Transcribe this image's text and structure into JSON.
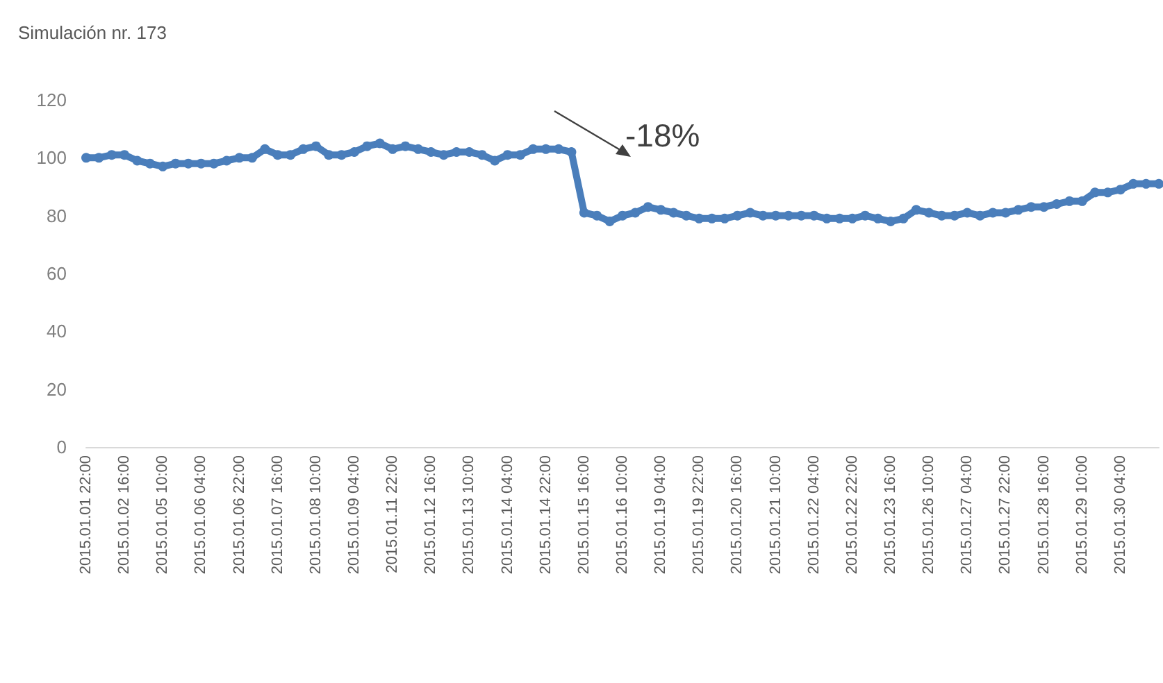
{
  "chart_data": {
    "type": "line",
    "title": "Simulación nr. 173",
    "categories": [
      "2015.01.01 22:00",
      null,
      null,
      "2015.01.02 16:00",
      null,
      null,
      "2015.01.05 10:00",
      null,
      null,
      "2015.01.06 04:00",
      null,
      null,
      "2015.01.06 22:00",
      null,
      null,
      "2015.01.07 16:00",
      null,
      null,
      "2015.01.08 10:00",
      null,
      null,
      "2015.01.09 04:00",
      null,
      null,
      "2015.01.11 22:00",
      null,
      null,
      "2015.01.12 16:00",
      null,
      null,
      "2015.01.13 10:00",
      null,
      null,
      "2015.01.14 04:00",
      null,
      null,
      "2015.01.14 22:00",
      null,
      null,
      "2015.01.15 16:00",
      null,
      null,
      "2015.01.16 10:00",
      null,
      null,
      "2015.01.19 04:00",
      null,
      null,
      "2015.01.19 22:00",
      null,
      null,
      "2015.01.20 16:00",
      null,
      null,
      "2015.01.21 10:00",
      null,
      null,
      "2015.01.22 04:00",
      null,
      null,
      "2015.01.22 22:00",
      null,
      null,
      "2015.01.23 16:00",
      null,
      null,
      "2015.01.26 10:00",
      null,
      null,
      "2015.01.27 04:00",
      null,
      null,
      "2015.01.27 22:00",
      null,
      null,
      "2015.01.28 16:00",
      null,
      null,
      "2015.01.29 10:00",
      null,
      null,
      "2015.01.30 04:00",
      null,
      null,
      null
    ],
    "series": [
      {
        "color": "#4a7ebb",
        "values": [
          100,
          100,
          101,
          101,
          99,
          98,
          97,
          98,
          98,
          98,
          98,
          99,
          100,
          100,
          103,
          101,
          101,
          103,
          104,
          101,
          101,
          102,
          104,
          105,
          103,
          104,
          103,
          102,
          101,
          102,
          102,
          101,
          99,
          101,
          101,
          103,
          103,
          103,
          102,
          81,
          80,
          78,
          80,
          81,
          83,
          82,
          81,
          80,
          79,
          79,
          79,
          80,
          81,
          80,
          80,
          80,
          80,
          80,
          79,
          79,
          79,
          80,
          79,
          78,
          79,
          82,
          81,
          80,
          80,
          81,
          80,
          81,
          81,
          82,
          83,
          83,
          84,
          85,
          85,
          88,
          88,
          89,
          91,
          91,
          91
        ]
      }
    ],
    "ylim": [
      0,
      120
    ],
    "yticks": [
      0,
      20,
      40,
      60,
      80,
      100,
      120
    ],
    "grid": false,
    "marker": "circle",
    "line_style": "solid",
    "annotations": [
      "-18%"
    ]
  }
}
